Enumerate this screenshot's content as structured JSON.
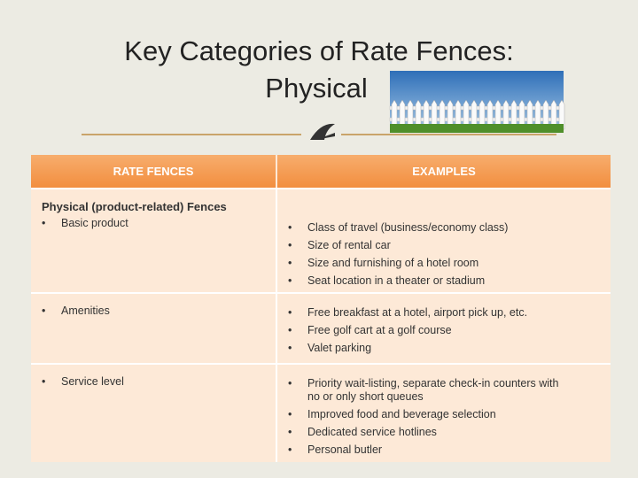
{
  "title": {
    "line1": "Key Categories of Rate Fences:",
    "line2": "Physical"
  },
  "table": {
    "headers": [
      "RATE FENCES",
      "EXAMPLES"
    ],
    "rows": [
      {
        "group": "Physical (product-related) Fences",
        "fence": "Basic product",
        "examples": [
          "Class of travel (business/economy class)",
          "Size of rental car",
          "Size and furnishing of a hotel room",
          "Seat location in a theater or stadium"
        ]
      },
      {
        "fence": "Amenities",
        "examples": [
          "Free breakfast at a hotel, airport pick up, etc.",
          "Free golf cart at a golf course",
          "Valet parking"
        ]
      },
      {
        "fence": "Service level",
        "examples": [
          "Priority wait-listing, separate check-in counters with no or only short queues",
          "Improved food and beverage selection",
          "Dedicated service hotlines",
          "Personal butler"
        ]
      }
    ]
  }
}
